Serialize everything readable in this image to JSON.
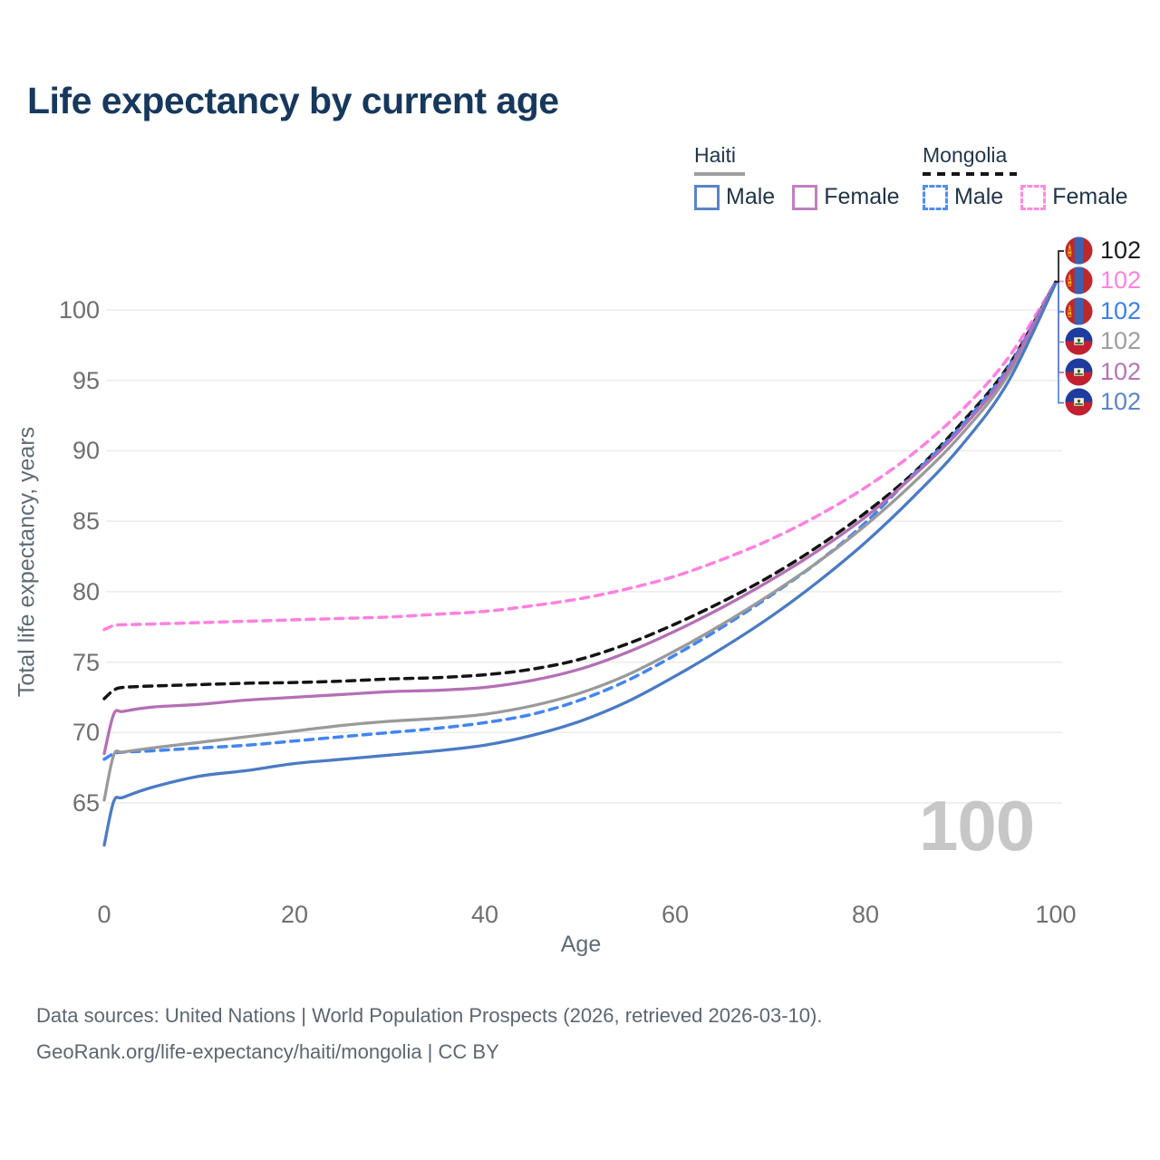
{
  "title": "Life expectancy by current age",
  "legend": {
    "groups": [
      {
        "country": "Haiti",
        "line_style": "solid",
        "underline_color": "#9e9e9e",
        "items": [
          {
            "label": "Male",
            "color": "#5b84c8",
            "dashed": false
          },
          {
            "label": "Female",
            "color": "#c07fc0",
            "dashed": false
          }
        ]
      },
      {
        "country": "Mongolia",
        "line_style": "dashed",
        "underline_color": "#151515",
        "items": [
          {
            "label": "Male",
            "color": "#4f8df5",
            "dashed": true
          },
          {
            "label": "Female",
            "color": "#ff8ae3",
            "dashed": true
          }
        ]
      }
    ]
  },
  "chart_data": {
    "type": "line",
    "title": "Life expectancy by current age",
    "xlabel": "Age",
    "ylabel": "Total life expectancy, years",
    "xlim": [
      0,
      100
    ],
    "ylim": [
      65,
      102
    ],
    "xticks": [
      0,
      20,
      40,
      60,
      80,
      100
    ],
    "yticks": [
      65,
      70,
      75,
      80,
      85,
      90,
      95,
      100
    ],
    "grid": true,
    "x": [
      0,
      1,
      2,
      5,
      10,
      15,
      20,
      25,
      30,
      35,
      40,
      45,
      50,
      55,
      60,
      65,
      70,
      75,
      80,
      85,
      90,
      95,
      100
    ],
    "series": [
      {
        "name": "Mongolia Both sexes",
        "country": "Mongolia",
        "flag": "mongolia",
        "color": "#141414",
        "dashed": true,
        "values": [
          72.4,
          73.0,
          73.2,
          73.3,
          73.4,
          73.5,
          73.55,
          73.65,
          73.8,
          73.9,
          74.1,
          74.5,
          75.2,
          76.3,
          77.7,
          79.3,
          81.1,
          83.2,
          85.6,
          88.4,
          91.9,
          96.0,
          102
        ],
        "end_label": "102",
        "label_color": "#1a1a1a"
      },
      {
        "name": "Mongolia Female",
        "country": "Mongolia",
        "flag": "mongolia",
        "color": "#ff80e0",
        "dashed": true,
        "values": [
          77.3,
          77.6,
          77.65,
          77.7,
          77.8,
          77.9,
          78.0,
          78.1,
          78.2,
          78.4,
          78.6,
          79.0,
          79.5,
          80.2,
          81.1,
          82.3,
          83.7,
          85.4,
          87.4,
          89.8,
          92.8,
          96.6,
          102
        ],
        "end_label": "102",
        "label_color": "#ff82e2"
      },
      {
        "name": "Mongolia Male",
        "country": "Mongolia",
        "flag": "mongolia",
        "color": "#4285f4",
        "dashed": true,
        "values": [
          68.1,
          68.5,
          68.6,
          68.7,
          68.9,
          69.1,
          69.4,
          69.7,
          70.0,
          70.3,
          70.7,
          71.3,
          72.3,
          73.7,
          75.5,
          77.5,
          79.7,
          82.1,
          84.9,
          88.3,
          91.7,
          95.9,
          102
        ],
        "end_label": "102",
        "label_color": "#3c7ef0"
      },
      {
        "name": "Haiti Both sexes",
        "country": "Haiti",
        "flag": "haiti",
        "color": "#9a9a9a",
        "dashed": false,
        "values": [
          65.2,
          68.4,
          68.6,
          68.9,
          69.3,
          69.7,
          70.1,
          70.5,
          70.8,
          71.0,
          71.3,
          71.9,
          72.8,
          74.1,
          75.8,
          77.7,
          79.8,
          82.1,
          84.7,
          87.7,
          91.1,
          95.4,
          102
        ],
        "end_label": "102",
        "label_color": "#9e9ea2"
      },
      {
        "name": "Haiti Female",
        "country": "Haiti",
        "flag": "haiti",
        "color": "#b470b4",
        "dashed": false,
        "values": [
          68.5,
          71.3,
          71.5,
          71.8,
          72.0,
          72.3,
          72.5,
          72.7,
          72.9,
          73.0,
          73.2,
          73.7,
          74.5,
          75.7,
          77.2,
          78.9,
          80.8,
          82.9,
          85.3,
          88.2,
          91.5,
          95.7,
          102
        ],
        "end_label": "102",
        "label_color": "#b673b9"
      },
      {
        "name": "Haiti Male",
        "country": "Haiti",
        "flag": "haiti",
        "color": "#4a7bc4",
        "dashed": false,
        "values": [
          62.0,
          65.1,
          65.4,
          66.1,
          66.9,
          67.3,
          67.8,
          68.1,
          68.4,
          68.7,
          69.1,
          69.8,
          70.8,
          72.2,
          74.0,
          76.0,
          78.2,
          80.7,
          83.5,
          86.7,
          90.3,
          94.9,
          101.9
        ],
        "end_label": "102",
        "label_color": "#5b84cc"
      }
    ],
    "end_label_order": [
      "Mongolia Both sexes",
      "Mongolia Female",
      "Mongolia Male",
      "Haiti Both sexes",
      "Haiti Female",
      "Haiti Male"
    ]
  },
  "watermark": "100",
  "footer": {
    "line1": "Data sources: United Nations | World Population Prospects (2026, retrieved 2026-03-10).",
    "line2": "GeoRank.org/life-expectancy/haiti/mongolia | CC BY"
  },
  "colors": {
    "grid": "#ebebeb",
    "tick_text": "#6f6f6f",
    "axis_title_text": "#5f6b76",
    "title_text": "#17385d",
    "watermark_text": "#c7c7c7"
  }
}
